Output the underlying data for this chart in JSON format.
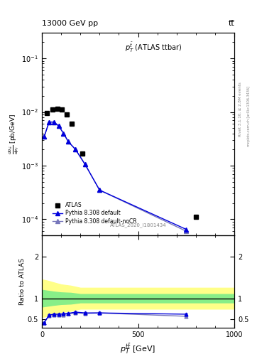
{
  "title_left": "13000 GeV pp",
  "title_right": "tt̅",
  "plot_title": "$p_T^{\\bar{t}}$ (ATLAS ttbar)",
  "xlabel": "$p^{t\\bar{t}}_T$ [GeV]",
  "ylabel_line1": "dσ",
  "rivet_text": "Rivet 3.1.10, ≥ 2.8M events",
  "mcplots_text": "mcplots.cern.ch [arXiv:1306.3436]",
  "atlas_id": "ATLAS_2020_I1801434",
  "atlas_x": [
    25,
    55,
    80,
    105,
    130,
    155,
    210,
    800
  ],
  "atlas_y": [
    0.0095,
    0.0112,
    0.0115,
    0.0112,
    0.009,
    0.006,
    0.0017,
    0.00011
  ],
  "pythia_x": [
    12.5,
    37.5,
    62.5,
    87.5,
    112.5,
    137.5,
    175,
    225,
    300,
    750
  ],
  "pythia_default_y": [
    0.0035,
    0.0065,
    0.0065,
    0.0055,
    0.004,
    0.0028,
    0.002,
    0.00105,
    0.00035,
    6.5e-05
  ],
  "pythia_nocr_y": [
    0.0035,
    0.0065,
    0.0065,
    0.0055,
    0.004,
    0.0028,
    0.002,
    0.00105,
    0.00035,
    6e-05
  ],
  "ratio_pythia_default": [
    0.42,
    0.6,
    0.62,
    0.62,
    0.63,
    0.64,
    0.67,
    0.65,
    0.65,
    0.62
  ],
  "ratio_pythia_nocr": [
    0.42,
    0.59,
    0.61,
    0.6,
    0.61,
    0.63,
    0.65,
    0.64,
    0.65,
    0.57
  ],
  "ratio_err_default": [
    0.015,
    0.012,
    0.012,
    0.012,
    0.012,
    0.012,
    0.012,
    0.015,
    0.015,
    0.018
  ],
  "ratio_err_nocr": [
    0.015,
    0.012,
    0.012,
    0.012,
    0.012,
    0.012,
    0.012,
    0.015,
    0.015,
    0.018
  ],
  "band_x": [
    0,
    30,
    60,
    100,
    150,
    200,
    300,
    500,
    800,
    1000
  ],
  "band_green_low": [
    0.8,
    0.82,
    0.84,
    0.86,
    0.87,
    0.9,
    0.9,
    0.9,
    0.9,
    0.9
  ],
  "band_green_high": [
    1.2,
    1.18,
    1.16,
    1.14,
    1.13,
    1.1,
    1.1,
    1.1,
    1.1,
    1.1
  ],
  "band_yellow_low": [
    0.55,
    0.58,
    0.62,
    0.67,
    0.7,
    0.75,
    0.75,
    0.75,
    0.75,
    0.75
  ],
  "band_yellow_high": [
    1.45,
    1.42,
    1.38,
    1.33,
    1.3,
    1.25,
    1.25,
    1.25,
    1.25,
    1.25
  ],
  "color_default": "#0000dd",
  "color_nocr": "#7777bb",
  "color_atlas": "black",
  "xlim": [
    0,
    1000
  ],
  "ylim_main_lo": 5e-05,
  "ylim_main_hi": 0.3,
  "ylim_ratio_lo": 0.3,
  "ylim_ratio_hi": 2.5,
  "ratio_yticks": [
    0.5,
    1.0,
    2.0
  ],
  "ratio_ytick_labels": [
    "0.5",
    "1",
    "2"
  ]
}
